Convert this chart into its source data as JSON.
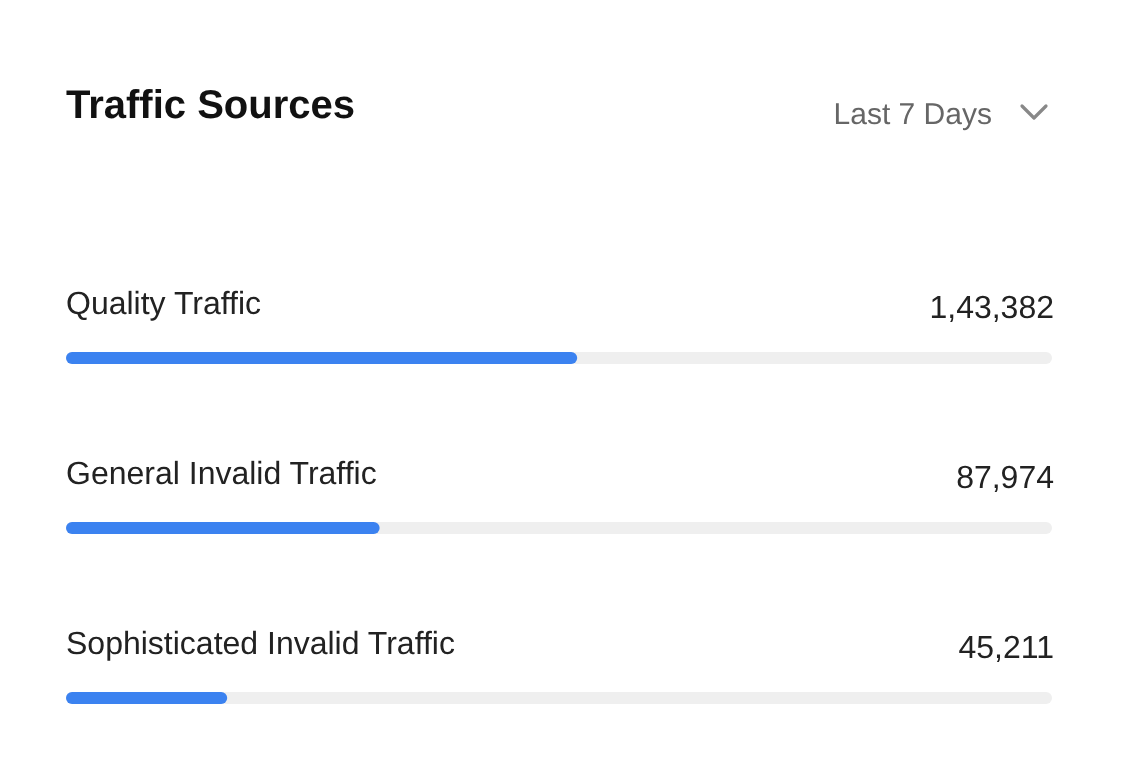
{
  "chart_data": {
    "type": "bar",
    "orientation": "horizontal",
    "title": "Traffic Sources",
    "annotations": [
      "Last 7 Days"
    ],
    "categories": [
      "Quality Traffic",
      "General Invalid Traffic",
      "Sophisticated Invalid Traffic"
    ],
    "values": [
      143382,
      87974,
      45211
    ],
    "value_labels": [
      "1,43,382",
      "87,974",
      "45,211"
    ],
    "color": "#3b82f0"
  }
}
